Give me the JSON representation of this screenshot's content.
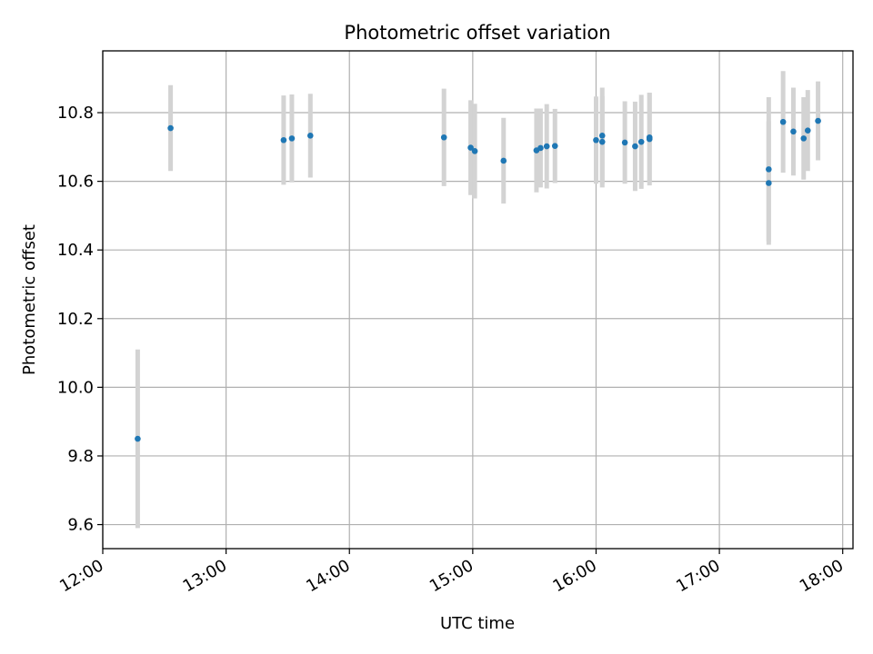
{
  "chart_data": {
    "type": "scatter",
    "title": "Photometric offset variation",
    "xlabel": "UTC time",
    "ylabel": "Photometric offset",
    "x_tick_labels": [
      "12:00",
      "13:00",
      "14:00",
      "15:00",
      "16:00",
      "17:00",
      "18:00"
    ],
    "y_tick_labels": [
      "9.6",
      "9.8",
      "10.0",
      "10.2",
      "10.4",
      "10.6",
      "10.8"
    ],
    "xlim": [
      "12:00",
      "18:05"
    ],
    "ylim": [
      9.53,
      10.98
    ],
    "grid": true,
    "colors": {
      "point": "#1f77b4",
      "errorbar": "#d3d3d3",
      "grid": "#b0b0b0"
    },
    "series": [
      {
        "points": [
          {
            "x": "12:17",
            "y": 9.85,
            "err": 0.26
          },
          {
            "x": "12:33",
            "y": 10.755,
            "err": 0.125
          },
          {
            "x": "13:28",
            "y": 10.72,
            "err": 0.13
          },
          {
            "x": "13:32",
            "y": 10.725,
            "err": 0.128
          },
          {
            "x": "13:41",
            "y": 10.733,
            "err": 0.122
          },
          {
            "x": "14:46",
            "y": 10.728,
            "err": 0.142
          },
          {
            "x": "14:59",
            "y": 10.698,
            "err": 0.138
          },
          {
            "x": "15:01",
            "y": 10.688,
            "err": 0.138
          },
          {
            "x": "15:15",
            "y": 10.66,
            "err": 0.125
          },
          {
            "x": "15:31",
            "y": 10.69,
            "err": 0.122
          },
          {
            "x": "15:33",
            "y": 10.697,
            "err": 0.115
          },
          {
            "x": "15:36",
            "y": 10.702,
            "err": 0.123
          },
          {
            "x": "15:40",
            "y": 10.703,
            "err": 0.108
          },
          {
            "x": "16:00",
            "y": 10.72,
            "err": 0.127
          },
          {
            "x": "16:03",
            "y": 10.715,
            "err": 0.133
          },
          {
            "x": "16:03",
            "y": 10.733,
            "err": 0.14
          },
          {
            "x": "16:14",
            "y": 10.713,
            "err": 0.12
          },
          {
            "x": "16:19",
            "y": 10.702,
            "err": 0.13
          },
          {
            "x": "16:22",
            "y": 10.715,
            "err": 0.137
          },
          {
            "x": "16:26",
            "y": 10.723,
            "err": 0.135
          },
          {
            "x": "16:26",
            "y": 10.728,
            "err": 0.13
          },
          {
            "x": "17:24",
            "y": 10.635,
            "err": 0.21
          },
          {
            "x": "17:24",
            "y": 10.595,
            "err": 0.18
          },
          {
            "x": "17:31",
            "y": 10.773,
            "err": 0.148
          },
          {
            "x": "17:36",
            "y": 10.745,
            "err": 0.128
          },
          {
            "x": "17:41",
            "y": 10.725,
            "err": 0.12
          },
          {
            "x": "17:43",
            "y": 10.748,
            "err": 0.118
          },
          {
            "x": "17:48",
            "y": 10.776,
            "err": 0.115
          }
        ]
      }
    ]
  }
}
